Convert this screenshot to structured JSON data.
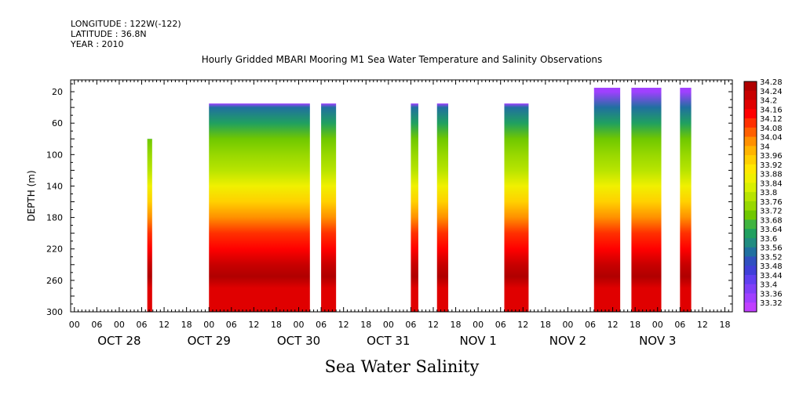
{
  "header": {
    "longitude": "LONGITUDE : 122W(-122)",
    "latitude": "LATITUDE : 36.8N",
    "year": "YEAR : 2010"
  },
  "chart_data": {
    "type": "heatmap",
    "title": "Hourly Gridded MBARI Mooring M1 Sea Water Temperature and Salinity Observations",
    "subtitle": "Sea Water Salinity",
    "ylabel": "DEPTH (m)",
    "x_range_hours": [
      -13,
      164
    ],
    "x_origin": "Oct 28 2010 00:00",
    "ylim": [
      300,
      5
    ],
    "y_inverted": true,
    "y_ticks": [
      20,
      60,
      100,
      140,
      180,
      220,
      260,
      300
    ],
    "hour_ticks": [
      {
        "h": -12,
        "label": "00"
      },
      {
        "h": -6,
        "label": "06"
      },
      {
        "h": 0,
        "label": "00"
      },
      {
        "h": 6,
        "label": "06"
      },
      {
        "h": 12,
        "label": "12"
      },
      {
        "h": 18,
        "label": "18"
      },
      {
        "h": 24,
        "label": "00"
      },
      {
        "h": 30,
        "label": "06"
      },
      {
        "h": 36,
        "label": "12"
      },
      {
        "h": 42,
        "label": "18"
      },
      {
        "h": 48,
        "label": "00"
      },
      {
        "h": 54,
        "label": "06"
      },
      {
        "h": 60,
        "label": "12"
      },
      {
        "h": 66,
        "label": "18"
      },
      {
        "h": 72,
        "label": "00"
      },
      {
        "h": 78,
        "label": "06"
      },
      {
        "h": 84,
        "label": "12"
      },
      {
        "h": 90,
        "label": "18"
      },
      {
        "h": 96,
        "label": "00"
      },
      {
        "h": 102,
        "label": "06"
      },
      {
        "h": 108,
        "label": "12"
      },
      {
        "h": 114,
        "label": "18"
      },
      {
        "h": 120,
        "label": "00"
      },
      {
        "h": 126,
        "label": "06"
      },
      {
        "h": 132,
        "label": "12"
      },
      {
        "h": 138,
        "label": "18"
      },
      {
        "h": 144,
        "label": "00"
      },
      {
        "h": 150,
        "label": "06"
      },
      {
        "h": 156,
        "label": "12"
      },
      {
        "h": 162,
        "label": "18"
      }
    ],
    "day_labels": [
      {
        "h": 0,
        "label": "OCT 28"
      },
      {
        "h": 24,
        "label": "OCT 29"
      },
      {
        "h": 48,
        "label": "OCT 30"
      },
      {
        "h": 72,
        "label": "OCT 31"
      },
      {
        "h": 96,
        "label": "NOV  1"
      },
      {
        "h": 120,
        "label": "NOV  2"
      },
      {
        "h": 144,
        "label": "NOV  3"
      }
    ],
    "colorbar": {
      "min": 33.3,
      "max": 34.3,
      "labels": [
        "34.28",
        "34.24",
        "34.2",
        "34.16",
        "34.12",
        "34.08",
        "34.04",
        "34",
        "33.96",
        "33.92",
        "33.88",
        "33.84",
        "33.8",
        "33.76",
        "33.72",
        "33.68",
        "33.64",
        "33.6",
        "33.56",
        "33.52",
        "33.48",
        "33.44",
        "33.4",
        "33.36",
        "33.32"
      ],
      "colors": [
        "#b00000",
        "#c80000",
        "#e00000",
        "#ff0000",
        "#ff3000",
        "#ff6000",
        "#ff9000",
        "#ffb400",
        "#ffd000",
        "#ffe800",
        "#f0f000",
        "#d8f000",
        "#b8e400",
        "#98d800",
        "#70c800",
        "#40b440",
        "#20a060",
        "#208c80",
        "#2070a0",
        "#3050c0",
        "#4040d8",
        "#6040f0",
        "#8040f8",
        "#a040ff",
        "#c040ff"
      ]
    },
    "profile": [
      {
        "depth": 20,
        "value": 33.36
      },
      {
        "depth": 40,
        "value": 33.55
      },
      {
        "depth": 60,
        "value": 33.65
      },
      {
        "depth": 80,
        "value": 33.7
      },
      {
        "depth": 100,
        "value": 33.74
      },
      {
        "depth": 120,
        "value": 33.8
      },
      {
        "depth": 140,
        "value": 33.88
      },
      {
        "depth": 160,
        "value": 33.97
      },
      {
        "depth": 180,
        "value": 34.04
      },
      {
        "depth": 200,
        "value": 34.1
      },
      {
        "depth": 220,
        "value": 34.16
      },
      {
        "depth": 240,
        "value": 34.22
      },
      {
        "depth": 255,
        "value": 34.27
      },
      {
        "depth": 270,
        "value": 34.2
      },
      {
        "depth": 300,
        "value": 34.18
      }
    ],
    "segments": [
      {
        "start": 7.5,
        "end": 8.8,
        "top": 80,
        "bottom": 300
      },
      {
        "start": 24,
        "end": 51,
        "top": 35,
        "bottom": 300
      },
      {
        "start": 54,
        "end": 58,
        "top": 35,
        "bottom": 300
      },
      {
        "start": 78,
        "end": 80,
        "top": 35,
        "bottom": 300
      },
      {
        "start": 85,
        "end": 88,
        "top": 35,
        "bottom": 300
      },
      {
        "start": 103,
        "end": 109.5,
        "top": 35,
        "bottom": 300
      },
      {
        "start": 127,
        "end": 134,
        "top": 15,
        "bottom": 300
      },
      {
        "start": 137,
        "end": 145,
        "top": 15,
        "bottom": 300
      },
      {
        "start": 150,
        "end": 153,
        "top": 15,
        "bottom": 300
      }
    ]
  }
}
